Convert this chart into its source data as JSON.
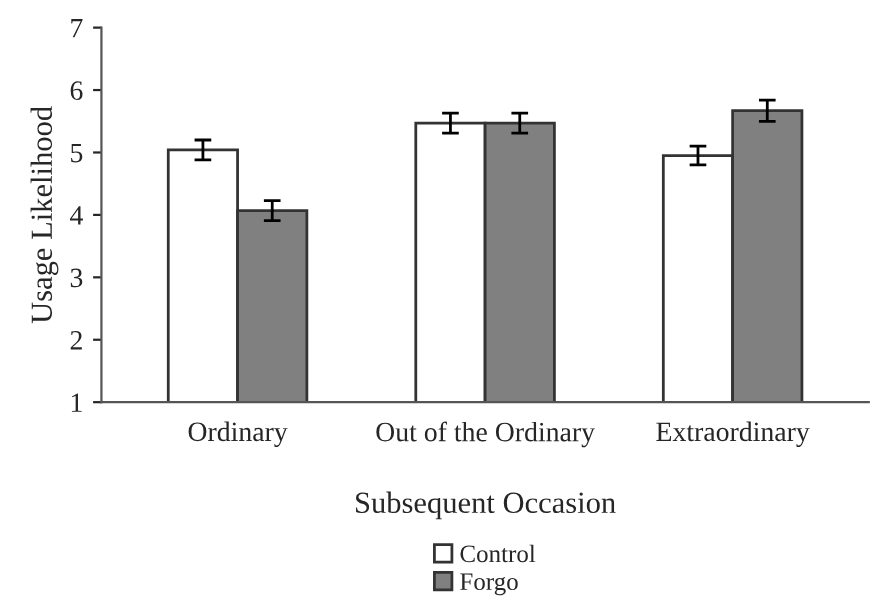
{
  "chart_data": {
    "type": "bar",
    "xlabel": "Subsequent Occasion",
    "ylabel": "Usage Likelihood",
    "categories": [
      "Ordinary",
      "Out of the Ordinary",
      "Extraordinary"
    ],
    "series": [
      {
        "name": "Control",
        "color": "#ffffff",
        "values": [
          5.04,
          5.47,
          4.95
        ],
        "errors": [
          0.16,
          0.16,
          0.15
        ]
      },
      {
        "name": "Forgo",
        "color": "#808080",
        "values": [
          4.07,
          5.47,
          5.67
        ],
        "errors": [
          0.16,
          0.16,
          0.17
        ]
      }
    ],
    "ylim": [
      1,
      7
    ],
    "yticks": [
      1,
      2,
      3,
      4,
      5,
      6,
      7
    ],
    "grid": false,
    "legend": "bottom"
  }
}
